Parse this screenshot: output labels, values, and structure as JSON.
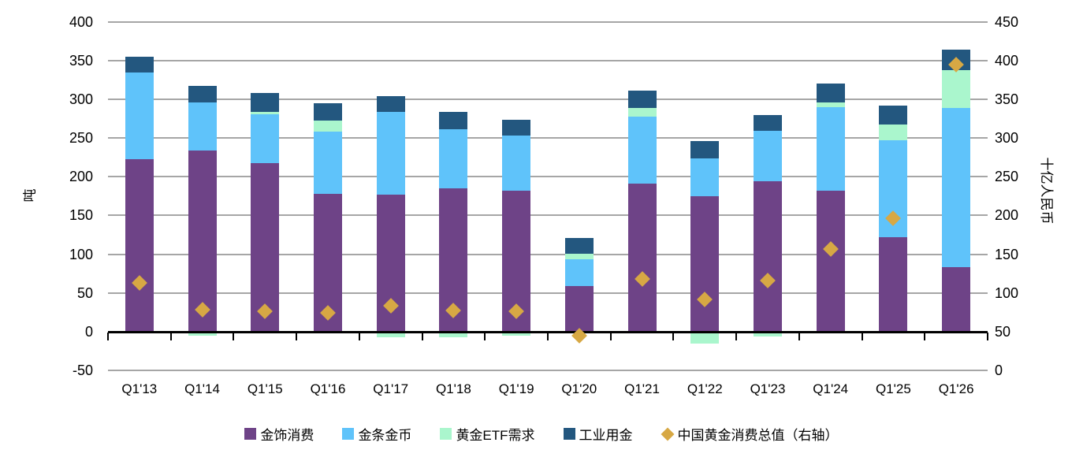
{
  "chart_data": {
    "type": "bar",
    "stacked": true,
    "grid": "horizontal",
    "legend_position": "bottom",
    "categories": [
      "Q1'13",
      "Q1'14",
      "Q1'15",
      "Q1'16",
      "Q1'17",
      "Q1'18",
      "Q1'19",
      "Q1'20",
      "Q1'21",
      "Q1'22",
      "Q1'23",
      "Q1'24",
      "Q1'25",
      "Q1'26"
    ],
    "series": [
      {
        "name": "金饰消费",
        "key": "jewelry",
        "color": "#6E4387",
        "axis": "left",
        "values": [
          223,
          234,
          218,
          178,
          177,
          185,
          182,
          59,
          191,
          175,
          194,
          182,
          122,
          83
        ]
      },
      {
        "name": "金条金币",
        "key": "bars-coins",
        "color": "#5FC3FA",
        "axis": "left",
        "values": [
          112,
          62,
          63,
          81,
          107,
          77,
          71,
          34,
          87,
          49,
          66,
          108,
          125,
          206
        ]
      },
      {
        "name": "黄金ETF需求",
        "key": "gold-etf",
        "color": "#AAF6CD",
        "axis": "left",
        "values": [
          0,
          -5,
          3,
          14,
          -7,
          -7,
          -5,
          8,
          11,
          -16,
          -6,
          6,
          21,
          49
        ]
      },
      {
        "name": "工业用金",
        "key": "industrial",
        "color": "#23577F",
        "axis": "left",
        "values": [
          20,
          22,
          24,
          22,
          20,
          22,
          21,
          20,
          23,
          22,
          20,
          25,
          24,
          26
        ]
      }
    ],
    "marker_series": {
      "name": "中国黄金消费总值（右轴）",
      "key": "china-gold-consumption-total-value",
      "shape": "diamond",
      "color": "#D7A844",
      "axis": "right",
      "values": [
        113,
        78,
        76,
        74,
        83,
        77,
        76,
        45,
        118,
        91,
        116,
        157,
        196,
        395
      ]
    },
    "axes": {
      "left": {
        "title": "吨",
        "min": -50,
        "max": 400,
        "step": 50,
        "ticks": [
          "400",
          "350",
          "300",
          "250",
          "200",
          "150",
          "100",
          "50",
          "0",
          "-50"
        ]
      },
      "right": {
        "title": "十亿人民币",
        "min": 0,
        "max": 450,
        "step": 50,
        "ticks": [
          "450",
          "400",
          "350",
          "300",
          "250",
          "200",
          "150",
          "100",
          "50",
          "0"
        ]
      }
    },
    "colors": {
      "gridline": "#A6A6A6",
      "zero_axis": "#000000",
      "text": "#000000",
      "background": "#FFFFFF"
    }
  }
}
